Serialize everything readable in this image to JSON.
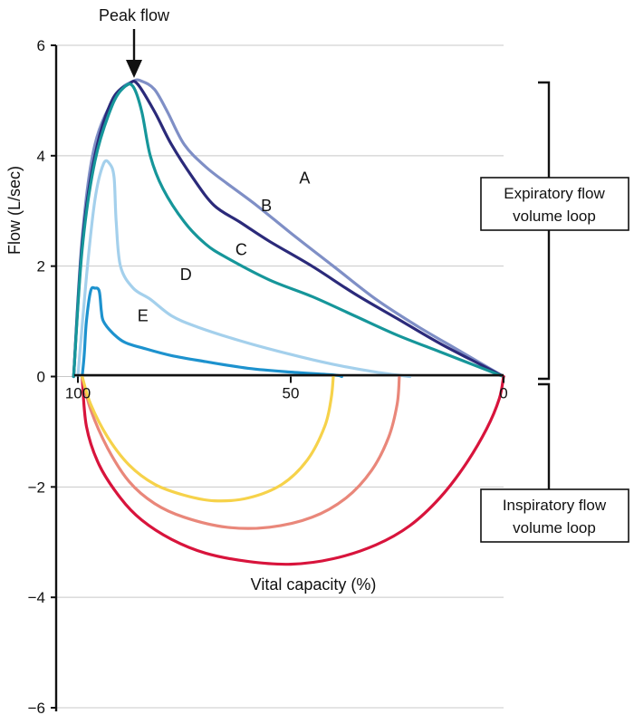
{
  "chart_data": {
    "type": "line",
    "title": "",
    "ylabel": "Flow (L/sec)",
    "xlabel": "Vital capacity (%)",
    "xlim": [
      100,
      0
    ],
    "ylim": [
      -6,
      6
    ],
    "y_ticks": [
      6,
      4,
      2,
      0,
      -2,
      -4,
      -6
    ],
    "x_ticks": [
      100,
      50,
      0
    ],
    "y_tick_labels": [
      "6",
      "4",
      "2",
      "0",
      "−2",
      "−4",
      "−6"
    ],
    "x_tick_labels": [
      "100",
      "50",
      "0"
    ],
    "grid": "horizontal",
    "annotations": {
      "peak_flow": "Peak flow",
      "expiratory_box": [
        "Expiratory flow",
        "volume loop"
      ],
      "inspiratory_box": [
        "Inspiratory flow",
        "volume loop"
      ]
    },
    "series": [
      {
        "name": "A",
        "color": "#7f8fc6",
        "points": [
          [
            101,
            0
          ],
          [
            99,
            2.5
          ],
          [
            96,
            4.2
          ],
          [
            91,
            5.1
          ],
          [
            87,
            5.35
          ],
          [
            85,
            5.35
          ],
          [
            82,
            5.2
          ],
          [
            79,
            4.8
          ],
          [
            75,
            4.2
          ],
          [
            70,
            3.8
          ],
          [
            65,
            3.5
          ],
          [
            58,
            3.1
          ],
          [
            50,
            2.6
          ],
          [
            40,
            2.0
          ],
          [
            30,
            1.4
          ],
          [
            20,
            0.9
          ],
          [
            10,
            0.45
          ],
          [
            0,
            0
          ]
        ]
      },
      {
        "name": "B",
        "color": "#2b2a7a",
        "points": [
          [
            101,
            0
          ],
          [
            99,
            2.4
          ],
          [
            96,
            4.0
          ],
          [
            92,
            5.0
          ],
          [
            88,
            5.3
          ],
          [
            86,
            5.3
          ],
          [
            82,
            4.8
          ],
          [
            78,
            4.2
          ],
          [
            73,
            3.6
          ],
          [
            68,
            3.1
          ],
          [
            62,
            2.8
          ],
          [
            55,
            2.45
          ],
          [
            45,
            2.0
          ],
          [
            35,
            1.5
          ],
          [
            25,
            1.05
          ],
          [
            15,
            0.6
          ],
          [
            5,
            0.2
          ],
          [
            0,
            0
          ]
        ]
      },
      {
        "name": "C",
        "color": "#16969a",
        "points": [
          [
            101,
            0
          ],
          [
            99,
            2.3
          ],
          [
            96,
            3.9
          ],
          [
            92,
            4.9
          ],
          [
            89,
            5.25
          ],
          [
            87,
            5.25
          ],
          [
            85,
            4.8
          ],
          [
            83,
            4.0
          ],
          [
            80,
            3.4
          ],
          [
            75,
            2.8
          ],
          [
            70,
            2.4
          ],
          [
            65,
            2.15
          ],
          [
            55,
            1.75
          ],
          [
            45,
            1.45
          ],
          [
            35,
            1.1
          ],
          [
            25,
            0.75
          ],
          [
            15,
            0.45
          ],
          [
            5,
            0.15
          ],
          [
            0,
            0
          ]
        ]
      },
      {
        "name": "D",
        "color": "#a4d0ec",
        "points": [
          [
            100,
            0
          ],
          [
            98,
            1.8
          ],
          [
            96,
            3.2
          ],
          [
            94,
            3.85
          ],
          [
            92.5,
            3.85
          ],
          [
            91.5,
            3.6
          ],
          [
            91,
            2.8
          ],
          [
            90,
            2.0
          ],
          [
            87,
            1.6
          ],
          [
            83,
            1.4
          ],
          [
            78,
            1.1
          ],
          [
            72,
            0.9
          ],
          [
            62,
            0.65
          ],
          [
            50,
            0.4
          ],
          [
            40,
            0.22
          ],
          [
            30,
            0.08
          ],
          [
            22,
            0.0
          ]
        ]
      },
      {
        "name": "E",
        "color": "#1d92ce",
        "points": [
          [
            99,
            0
          ],
          [
            98.5,
            0.4
          ],
          [
            98,
            1.0
          ],
          [
            97,
            1.55
          ],
          [
            96,
            1.6
          ],
          [
            95,
            1.55
          ],
          [
            94.5,
            1.2
          ],
          [
            94,
            1.0
          ],
          [
            92,
            0.8
          ],
          [
            89,
            0.62
          ],
          [
            84,
            0.5
          ],
          [
            78,
            0.38
          ],
          [
            70,
            0.27
          ],
          [
            60,
            0.15
          ],
          [
            50,
            0.08
          ],
          [
            40,
            0.03
          ],
          [
            38,
            0.0
          ]
        ]
      },
      {
        "name": "Inspiratory (red)",
        "color": "#d8143c",
        "points": [
          [
            99,
            0
          ],
          [
            98,
            -0.9
          ],
          [
            95,
            -1.6
          ],
          [
            90,
            -2.2
          ],
          [
            85,
            -2.6
          ],
          [
            78,
            -2.95
          ],
          [
            70,
            -3.2
          ],
          [
            60,
            -3.35
          ],
          [
            50,
            -3.4
          ],
          [
            40,
            -3.3
          ],
          [
            30,
            -3.05
          ],
          [
            22,
            -2.7
          ],
          [
            15,
            -2.2
          ],
          [
            9,
            -1.6
          ],
          [
            4,
            -0.95
          ],
          [
            1,
            -0.4
          ],
          [
            0,
            0
          ]
        ]
      },
      {
        "name": "Inspiratory (salmon)",
        "color": "#e9877a",
        "points": [
          [
            99,
            0
          ],
          [
            97,
            -0.6
          ],
          [
            93,
            -1.3
          ],
          [
            88,
            -1.9
          ],
          [
            82,
            -2.3
          ],
          [
            75,
            -2.55
          ],
          [
            65,
            -2.73
          ],
          [
            55,
            -2.73
          ],
          [
            45,
            -2.55
          ],
          [
            37,
            -2.2
          ],
          [
            31,
            -1.7
          ],
          [
            27,
            -1.1
          ],
          [
            25,
            -0.5
          ],
          [
            24.5,
            0
          ]
        ]
      },
      {
        "name": "Inspiratory (yellow)",
        "color": "#f6d24a",
        "points": [
          [
            99,
            0
          ],
          [
            97,
            -0.5
          ],
          [
            93,
            -1.1
          ],
          [
            88,
            -1.6
          ],
          [
            82,
            -1.95
          ],
          [
            75,
            -2.15
          ],
          [
            68,
            -2.25
          ],
          [
            60,
            -2.2
          ],
          [
            52,
            -1.95
          ],
          [
            46,
            -1.5
          ],
          [
            42,
            -0.9
          ],
          [
            40.5,
            -0.4
          ],
          [
            40,
            0
          ]
        ]
      }
    ]
  }
}
